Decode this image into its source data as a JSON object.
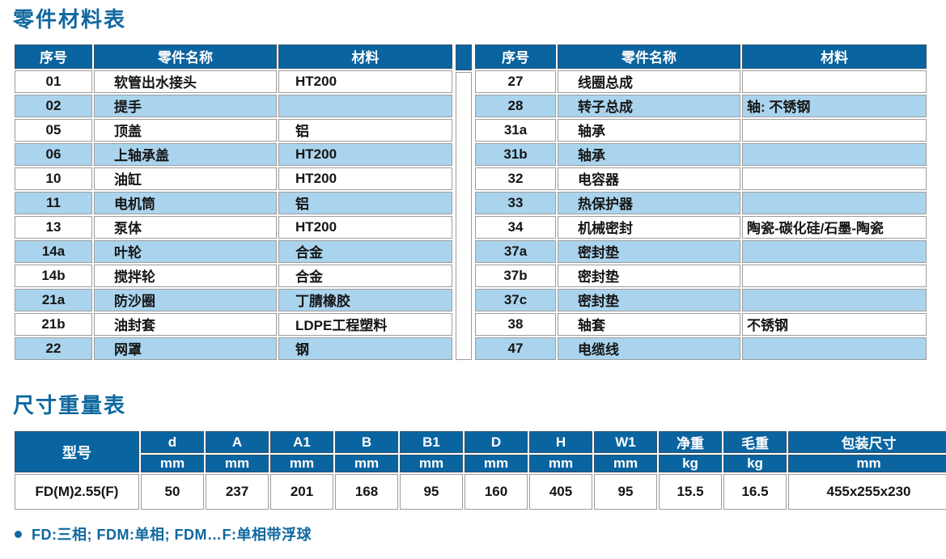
{
  "page": {
    "parts_title": "零件材料表",
    "dims_title": "尺寸重量表",
    "note": "FD:三相; FDM:单相; FDM…F:单相带浮球"
  },
  "colors": {
    "header_blue": "#0A64A0",
    "stripe_blue": "#AAD4EE",
    "title_blue": "#10689F",
    "border_grey": "#9C9C9C"
  },
  "parts_table": {
    "headers": [
      "序号",
      "零件名称",
      "材料"
    ],
    "left_rows": [
      {
        "no": "01",
        "name": "软管出水接头",
        "material": "HT200"
      },
      {
        "no": "02",
        "name": "提手",
        "material": ""
      },
      {
        "no": "05",
        "name": "顶盖",
        "material": "铝"
      },
      {
        "no": "06",
        "name": "上轴承盖",
        "material": "HT200"
      },
      {
        "no": "10",
        "name": "油缸",
        "material": "HT200"
      },
      {
        "no": "11",
        "name": "电机筒",
        "material": "铝"
      },
      {
        "no": "13",
        "name": "泵体",
        "material": "HT200"
      },
      {
        "no": "14a",
        "name": "叶轮",
        "material": "合金"
      },
      {
        "no": "14b",
        "name": "搅拌轮",
        "material": "合金"
      },
      {
        "no": "21a",
        "name": "防沙圈",
        "material": "丁腈橡胶"
      },
      {
        "no": "21b",
        "name": "油封套",
        "material": "LDPE工程塑料"
      },
      {
        "no": "22",
        "name": "网罩",
        "material": "钢"
      }
    ],
    "right_rows": [
      {
        "no": "27",
        "name": "线圈总成",
        "material": ""
      },
      {
        "no": "28",
        "name": "转子总成",
        "material": "轴: 不锈钢"
      },
      {
        "no": "31a",
        "name": "轴承",
        "material": ""
      },
      {
        "no": "31b",
        "name": "轴承",
        "material": ""
      },
      {
        "no": "32",
        "name": "电容器",
        "material": ""
      },
      {
        "no": "33",
        "name": "热保护器",
        "material": ""
      },
      {
        "no": "34",
        "name": "机械密封",
        "material": "陶瓷-碳化硅/石墨-陶瓷"
      },
      {
        "no": "37a",
        "name": "密封垫",
        "material": ""
      },
      {
        "no": "37b",
        "name": "密封垫",
        "material": ""
      },
      {
        "no": "37c",
        "name": "密封垫",
        "material": ""
      },
      {
        "no": "38",
        "name": "轴套",
        "material": "不锈钢"
      },
      {
        "no": "47",
        "name": "电缆线",
        "material": ""
      }
    ]
  },
  "dims_table": {
    "model_header": "型号",
    "columns": [
      {
        "label": "d",
        "unit": "mm"
      },
      {
        "label": "A",
        "unit": "mm"
      },
      {
        "label": "A1",
        "unit": "mm"
      },
      {
        "label": "B",
        "unit": "mm"
      },
      {
        "label": "B1",
        "unit": "mm"
      },
      {
        "label": "D",
        "unit": "mm"
      },
      {
        "label": "H",
        "unit": "mm"
      },
      {
        "label": "W1",
        "unit": "mm"
      },
      {
        "label": "净重",
        "unit": "kg"
      },
      {
        "label": "毛重",
        "unit": "kg"
      },
      {
        "label": "包装尺寸",
        "unit": "mm"
      }
    ],
    "rows": [
      {
        "model": "FD(M)2.55(F)",
        "values": [
          "50",
          "237",
          "201",
          "168",
          "95",
          "160",
          "405",
          "95",
          "15.5",
          "16.5",
          "455x255x230"
        ]
      }
    ]
  }
}
